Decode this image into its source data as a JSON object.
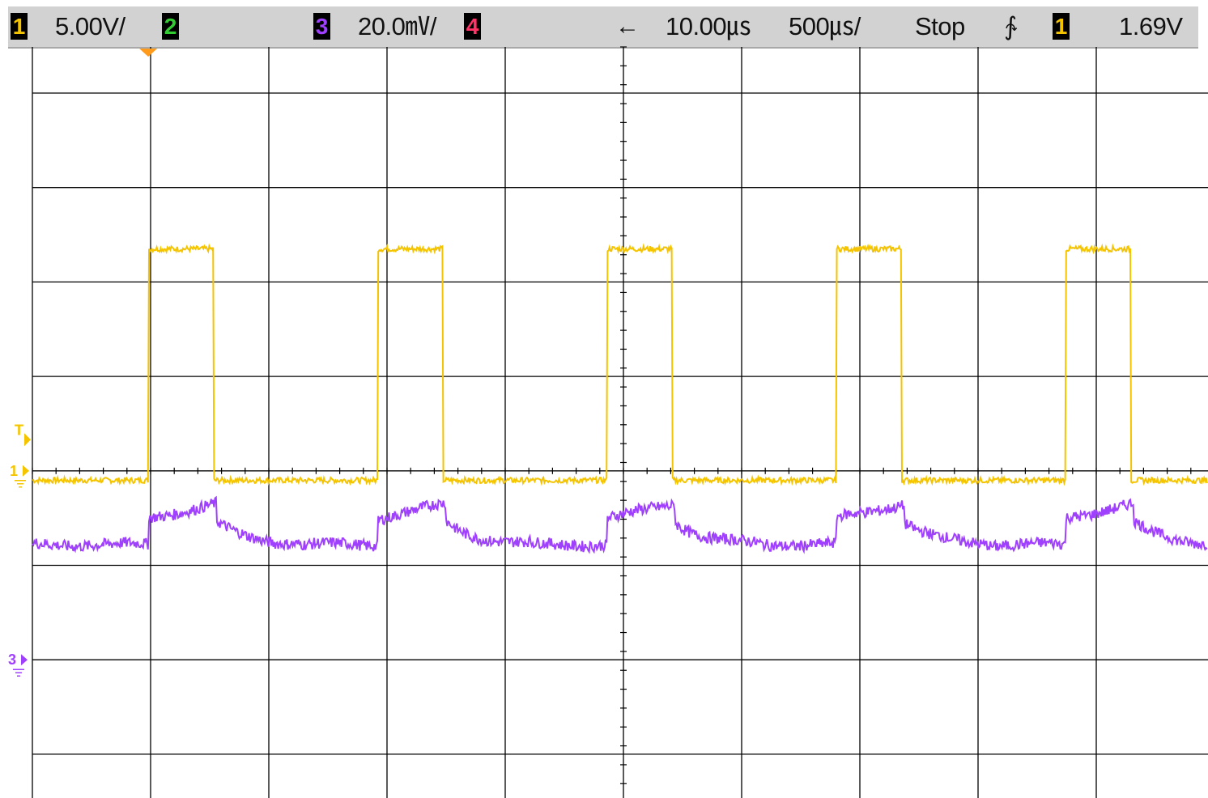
{
  "header": {
    "ch1": {
      "num": "1",
      "scale": "5.00V/",
      "color": "#f5c400"
    },
    "ch2": {
      "num": "2",
      "color": "#33cc33"
    },
    "ch3": {
      "num": "3",
      "scale": "20.0㎷/",
      "color": "#a040ff"
    },
    "ch4": {
      "num": "4",
      "color": "#ff3366"
    },
    "delay_arrow": "←",
    "delay": "10.00㎲",
    "timebase": "500㎲/",
    "run_state": "Stop",
    "trigger_slope": "∱",
    "trigger_source": "1",
    "trigger_level": "1.69V"
  },
  "markers": {
    "trigger_level": "T",
    "ch1_ground": "1",
    "ch3_ground": "3"
  },
  "chart_data": {
    "type": "line",
    "grid": true,
    "divisions": {
      "x": 10,
      "y": 8
    },
    "series": [
      {
        "channel": "1",
        "color": "#f5c400",
        "waveform": "square",
        "low_div": -0.1,
        "high_div": 2.35,
        "rising_edges_div": [
          0.98,
          2.92,
          4.86,
          6.8,
          8.74
        ],
        "pulse_width_div": 0.55,
        "noise_div": 0.03
      },
      {
        "channel": "3",
        "color": "#a040ff",
        "waveform": "step-response",
        "low_div": -0.78,
        "high_div": -0.35,
        "rising_edges_div": [
          0.98,
          2.92,
          4.86,
          6.8,
          8.74
        ],
        "noise_div": 0.06
      }
    ],
    "trigger": {
      "source": "1",
      "position_div": 0.98,
      "level_div": 0.33
    }
  }
}
